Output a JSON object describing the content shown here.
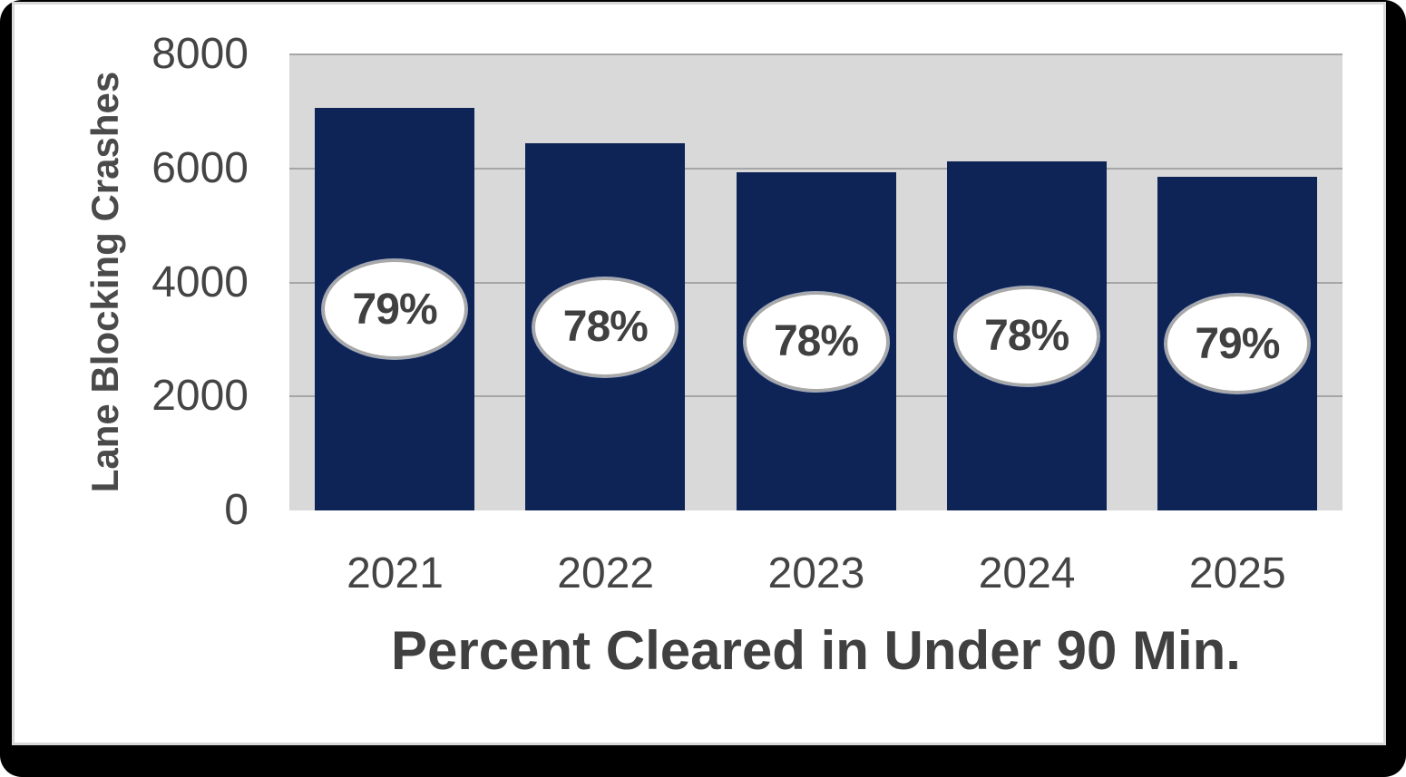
{
  "chart_data": {
    "type": "bar",
    "title": "",
    "categories": [
      "2021",
      "2022",
      "2023",
      "2024",
      "2025"
    ],
    "values": [
      7060,
      6440,
      5930,
      6120,
      5850
    ],
    "bar_labels": [
      "79%",
      "78%",
      "78%",
      "78%",
      "79%"
    ],
    "xlabel": "Percent Cleared in Under 90 Min.",
    "ylabel": "Lane Blocking Crashes",
    "ylim": [
      0,
      8000
    ],
    "yticks": [
      0,
      2000,
      4000,
      6000,
      8000
    ],
    "ytick_labels": [
      "0",
      "2000",
      "4000",
      "6000",
      "8000"
    ],
    "grid": "horizontal",
    "legend": "none",
    "colors": {
      "bar": "#0e2456",
      "plot_background": "#d9d9d9",
      "gridline": "#a6a6a6",
      "text": "#404040",
      "oval_fill": "#ffffff",
      "oval_border": "#a8a8a8",
      "frame": "#000000",
      "page_background": "#ffffff"
    }
  }
}
